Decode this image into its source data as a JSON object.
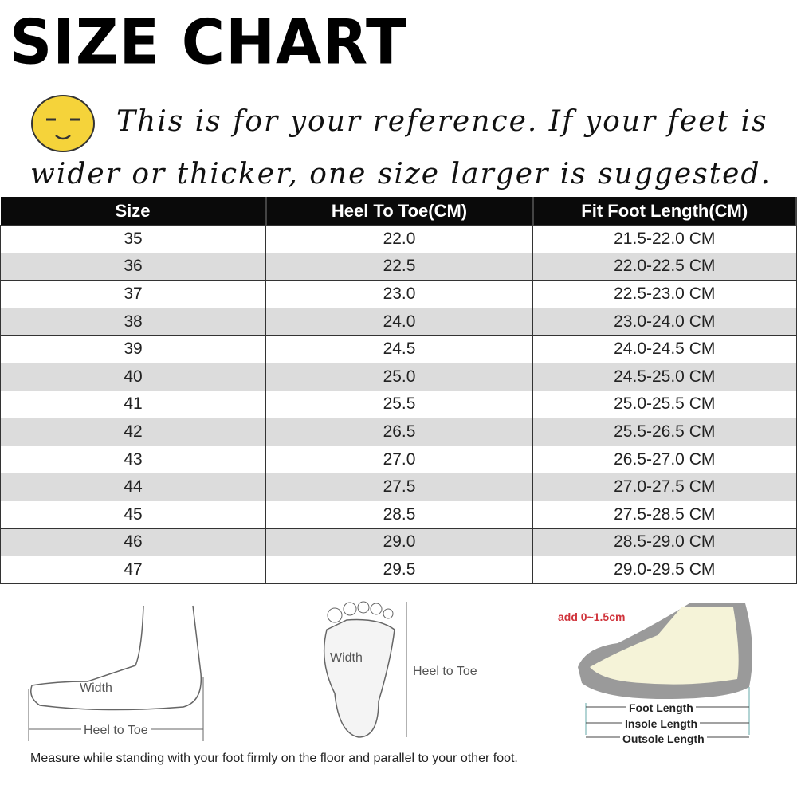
{
  "title": "SIZE CHART",
  "icon": "sleepy-smiley-face-icon",
  "note_line1": "This is for your reference. If your feet is",
  "note_line2": "wider or thicker, one size larger is suggested.",
  "table": {
    "headers": [
      "Size",
      "Heel To Toe(CM)",
      "Fit Foot Length(CM)"
    ],
    "rows": [
      [
        "35",
        "22.0",
        "21.5-22.0 CM"
      ],
      [
        "36",
        "22.5",
        "22.0-22.5 CM"
      ],
      [
        "37",
        "23.0",
        "22.5-23.0 CM"
      ],
      [
        "38",
        "24.0",
        "23.0-24.0 CM"
      ],
      [
        "39",
        "24.5",
        "24.0-24.5 CM"
      ],
      [
        "40",
        "25.0",
        "24.5-25.0 CM"
      ],
      [
        "41",
        "25.5",
        "25.0-25.5 CM"
      ],
      [
        "42",
        "26.5",
        "25.5-26.5 CM"
      ],
      [
        "43",
        "27.0",
        "26.5-27.0 CM"
      ],
      [
        "44",
        "27.5",
        "27.0-27.5 CM"
      ],
      [
        "45",
        "28.5",
        "27.5-28.5 CM"
      ],
      [
        "46",
        "29.0",
        "28.5-29.0 CM"
      ],
      [
        "47",
        "29.5",
        "29.0-29.5 CM"
      ]
    ]
  },
  "diagrams": {
    "side_width": "Width",
    "side_heel_to_toe": "Heel to Toe",
    "sole_width": "Width",
    "sole_heel_to_toe": "Heel to Toe",
    "shoe_add": "add 0~1.5cm",
    "foot_length": "Foot Length",
    "insole_length": "Insole Length",
    "outsole_length": "Outsole Length"
  },
  "instruction": "Measure while standing with your foot firmly on the floor and parallel to your other foot.",
  "colors": {
    "header_bg": "#0a0a0a",
    "stripe": "#dcdcdc",
    "smiley": "#f5d33a",
    "accent_red": "#d0333b"
  }
}
